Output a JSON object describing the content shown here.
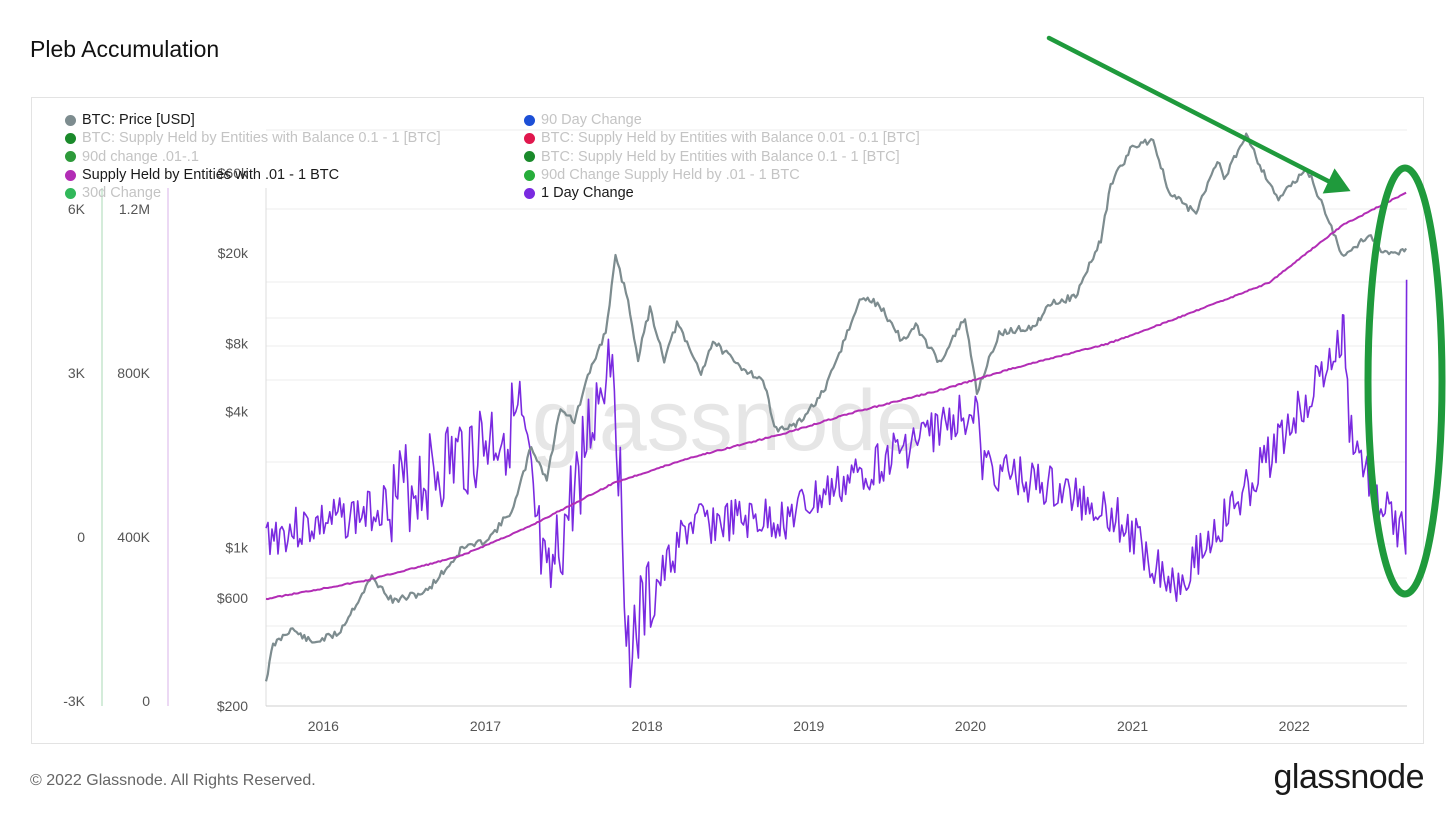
{
  "title": "Pleb Accumulation",
  "legend": [
    {
      "label": "BTC: Price [USD]",
      "color": "#7d8c8f",
      "active": true
    },
    {
      "label": "BTC: Supply Held by Entities with Balance 0.1 - 1 [BTC]",
      "color": "#1a8a2b",
      "active": false
    },
    {
      "label": "90d change .01-.1",
      "color": "#2d9a3a",
      "active": false
    },
    {
      "label": "Supply Held by Entities with .01 - 1 BTC",
      "color": "#b22db5",
      "active": true
    },
    {
      "label": "30d Change",
      "color": "#31b85a",
      "active": false
    },
    {
      "label": "90 Day Change",
      "color": "#1c4fd6",
      "active": false
    },
    {
      "label": "BTC: Supply Held by Entities with Balance 0.01 - 0.1 [BTC]",
      "color": "#e0174d",
      "active": false
    },
    {
      "label": "BTC: Supply Held by Entities with Balance 0.1 - 1 [BTC]",
      "color": "#1a8a2b",
      "active": false
    },
    {
      "label": "90d Change Supply Held by .01 - 1 BTC",
      "color": "#27ad3b",
      "active": false
    },
    {
      "label": "1 Day Change",
      "color": "#7a2ae0",
      "active": true
    }
  ],
  "axes": {
    "change_axis_ticks": [
      "6K",
      "3K",
      "0",
      "-3K"
    ],
    "supply_axis_ticks": [
      "1.2M",
      "800K",
      "400K",
      "0"
    ],
    "price_axis_ticks": [
      "$60k",
      "$20k",
      "$8k",
      "$4k",
      "$1k",
      "$600",
      "$200"
    ],
    "x_ticks": [
      "2016",
      "2017",
      "2018",
      "2019",
      "2020",
      "2021",
      "2022"
    ]
  },
  "watermark": "glassnode",
  "footer": "© 2022 Glassnode. All Rights Reserved.",
  "brand": "glassnode",
  "annotations": {
    "arrow_color": "#1f9a3c",
    "ellipse_color": "#1f9a3c"
  },
  "chart_data": {
    "type": "line",
    "title": "Pleb Accumulation",
    "x_range": [
      "2015-10",
      "2022-11"
    ],
    "scales": {
      "price": {
        "type": "log",
        "range": [
          200,
          70000
        ]
      },
      "supply": {
        "type": "linear",
        "range": [
          0,
          1200000
        ]
      },
      "change": {
        "type": "linear",
        "range": [
          -3000,
          6000
        ]
      }
    },
    "grid": true,
    "legend_placement": "top-left",
    "series": [
      {
        "name": "BTC: Price [USD]",
        "axis": "price",
        "color": "#7d8c8f",
        "points": [
          [
            "2015-10-20",
            260
          ],
          [
            "2015-11-05",
            370
          ],
          [
            "2015-12-15",
            440
          ],
          [
            "2016-02-01",
            380
          ],
          [
            "2016-04-01",
            420
          ],
          [
            "2016-06-15",
            740
          ],
          [
            "2016-08-01",
            580
          ],
          [
            "2016-10-15",
            640
          ],
          [
            "2016-12-20",
            900
          ],
          [
            "2017-01-05",
            1000
          ],
          [
            "2017-02-15",
            1050
          ],
          [
            "2017-03-15",
            1150
          ],
          [
            "2017-05-01",
            1500
          ],
          [
            "2017-06-10",
            2800
          ],
          [
            "2017-07-15",
            2000
          ],
          [
            "2017-08-15",
            4200
          ],
          [
            "2017-09-15",
            3600
          ],
          [
            "2017-10-20",
            6000
          ],
          [
            "2017-11-25",
            9000
          ],
          [
            "2017-12-17",
            19000
          ],
          [
            "2018-01-10",
            13500
          ],
          [
            "2018-02-06",
            6900
          ],
          [
            "2018-03-05",
            11400
          ],
          [
            "2018-04-06",
            6800
          ],
          [
            "2018-05-05",
            9800
          ],
          [
            "2018-06-28",
            5900
          ],
          [
            "2018-07-25",
            8200
          ],
          [
            "2018-09-15",
            6500
          ],
          [
            "2018-11-15",
            5500
          ],
          [
            "2018-12-15",
            3300
          ],
          [
            "2019-02-01",
            3500
          ],
          [
            "2019-04-05",
            5000
          ],
          [
            "2019-05-15",
            8000
          ],
          [
            "2019-06-26",
            12800
          ],
          [
            "2019-08-05",
            11800
          ],
          [
            "2019-09-25",
            8200
          ],
          [
            "2019-10-26",
            9500
          ],
          [
            "2019-12-18",
            6600
          ],
          [
            "2020-02-14",
            10300
          ],
          [
            "2020-03-12",
            4900
          ],
          [
            "2020-05-01",
            8800
          ],
          [
            "2020-07-25",
            9600
          ],
          [
            "2020-08-15",
            11800
          ],
          [
            "2020-10-21",
            12900
          ],
          [
            "2020-12-17",
            23000
          ],
          [
            "2021-01-08",
            40000
          ],
          [
            "2021-02-21",
            57000
          ],
          [
            "2021-03-13",
            61000
          ],
          [
            "2021-04-14",
            63500
          ],
          [
            "2021-05-19",
            37000
          ],
          [
            "2021-07-20",
            30000
          ],
          [
            "2021-09-06",
            52000
          ],
          [
            "2021-09-21",
            42000
          ],
          [
            "2021-11-10",
            68000
          ],
          [
            "2021-12-15",
            47000
          ],
          [
            "2022-01-22",
            35000
          ],
          [
            "2022-03-28",
            47000
          ],
          [
            "2022-05-12",
            29000
          ],
          [
            "2022-06-18",
            19000
          ],
          [
            "2022-08-14",
            24500
          ],
          [
            "2022-09-15",
            19800
          ],
          [
            "2022-10-25",
            20300
          ],
          [
            "2022-11-06",
            21000
          ]
        ]
      },
      {
        "name": "Supply Held by Entities with .01 - 1 BTC",
        "axis": "supply",
        "color": "#b22db5",
        "points": [
          [
            "2015-10-20",
            245000
          ],
          [
            "2016-06-01",
            290000
          ],
          [
            "2017-01-01",
            350000
          ],
          [
            "2017-06-01",
            420000
          ],
          [
            "2017-12-15",
            530000
          ],
          [
            "2018-06-01",
            590000
          ],
          [
            "2019-01-01",
            650000
          ],
          [
            "2019-06-01",
            700000
          ],
          [
            "2020-01-01",
            760000
          ],
          [
            "2020-06-01",
            810000
          ],
          [
            "2021-01-01",
            870000
          ],
          [
            "2021-06-01",
            930000
          ],
          [
            "2022-01-01",
            1020000
          ],
          [
            "2022-06-15",
            1160000
          ],
          [
            "2022-11-06",
            1240000
          ]
        ]
      },
      {
        "name": "1 Day Change",
        "axis": "change",
        "color": "#7a2ae0",
        "points": [
          [
            "2015-10-20",
            0
          ],
          [
            "2016-06-01",
            400
          ],
          [
            "2017-05-15",
            2100
          ],
          [
            "2017-07-15",
            -1200
          ],
          [
            "2017-12-10",
            3600
          ],
          [
            "2018-01-15",
            -2000
          ],
          [
            "2018-06-01",
            200
          ],
          [
            "2019-01-01",
            300
          ],
          [
            "2020-03-13",
            2400
          ],
          [
            "2020-03-20",
            1300
          ],
          [
            "2021-01-01",
            500
          ],
          [
            "2021-06-01",
            -900
          ],
          [
            "2021-11-01",
            700
          ],
          [
            "2022-06-13",
            3500
          ],
          [
            "2022-06-18",
            3900
          ],
          [
            "2022-07-01",
            2000
          ],
          [
            "2022-09-01",
            600
          ],
          [
            "2022-11-05",
            0
          ],
          [
            "2022-11-07",
            4700
          ]
        ]
      }
    ]
  }
}
